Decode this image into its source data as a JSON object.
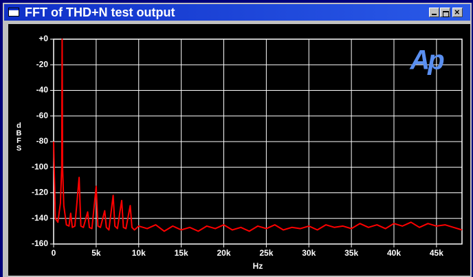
{
  "window": {
    "title": "FFT of THD+N test output"
  },
  "chart_data": {
    "type": "line",
    "logo": "Ap",
    "xlabel": "Hz",
    "ylabel": "dBFS",
    "xlim": [
      0,
      48000
    ],
    "ylim": [
      -160,
      0
    ],
    "xticks": [
      0,
      {
        "value": 5000,
        "label": "5k"
      },
      {
        "value": 10000,
        "label": "10k"
      },
      {
        "value": 15000,
        "label": "15k"
      },
      {
        "value": 20000,
        "label": "20k"
      },
      {
        "value": 25000,
        "label": "25k"
      },
      {
        "value": 30000,
        "label": "30k"
      },
      {
        "value": 35000,
        "label": "35k"
      },
      {
        "value": 40000,
        "label": "40k"
      },
      {
        "value": 45000,
        "label": "45k"
      }
    ],
    "yticks": [
      {
        "value": 0,
        "label": "+0"
      },
      -20,
      -40,
      -60,
      -80,
      -100,
      -120,
      -140,
      -160
    ],
    "grid": true,
    "x": [
      0,
      200,
      500,
      800,
      950,
      1000,
      1050,
      1200,
      1500,
      1800,
      2000,
      2200,
      2500,
      3000,
      3200,
      3500,
      4000,
      4200,
      4500,
      5000,
      5200,
      5500,
      6000,
      6200,
      6500,
      7000,
      7200,
      7500,
      8000,
      8200,
      8500,
      9000,
      9200,
      9500,
      10000,
      11000,
      12000,
      13000,
      14000,
      15000,
      16000,
      17000,
      18000,
      19000,
      20000,
      21000,
      22000,
      23000,
      24000,
      25000,
      26000,
      27000,
      28000,
      29000,
      30000,
      31000,
      32000,
      33000,
      34000,
      35000,
      36000,
      37000,
      38000,
      39000,
      40000,
      41000,
      42000,
      43000,
      44000,
      45000,
      46000,
      47000,
      48000
    ],
    "series": [
      {
        "color": "#ff0000",
        "values": [
          -80,
          -140,
          -143,
          -128,
          -100,
          0,
          -100,
          -130,
          -145,
          -146,
          -136,
          -147,
          -146,
          -108,
          -146,
          -147,
          -135,
          -147,
          -148,
          -115,
          -146,
          -147,
          -134,
          -147,
          -149,
          -122,
          -146,
          -148,
          -126,
          -147,
          -148,
          -130,
          -147,
          -149,
          -146,
          -148,
          -145,
          -150,
          -146,
          -149,
          -147,
          -150,
          -146,
          -148,
          -145,
          -149,
          -147,
          -150,
          -146,
          -148,
          -145,
          -149,
          -147,
          -148,
          -146,
          -149,
          -145,
          -147,
          -146,
          -148,
          -144,
          -147,
          -145,
          -148,
          -144,
          -146,
          -143,
          -147,
          -144,
          -146,
          -145,
          -147,
          -149
        ]
      }
    ]
  }
}
